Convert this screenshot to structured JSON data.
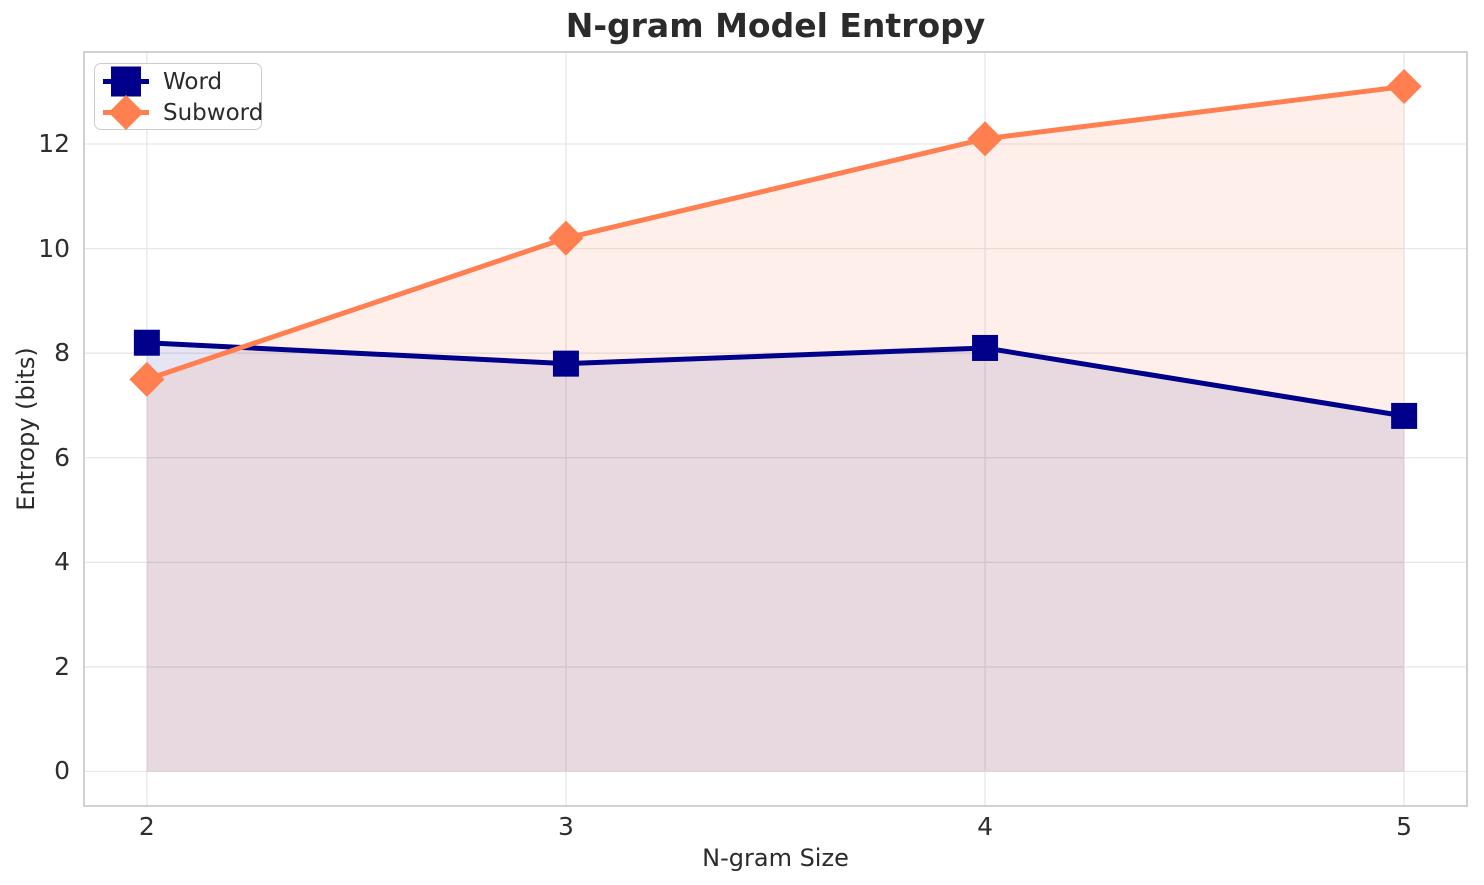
{
  "chart_data": {
    "type": "line",
    "title": "N-gram Model Entropy",
    "xlabel": "N-gram Size",
    "ylabel": "Entropy (bits)",
    "x": [
      2,
      3,
      4,
      5
    ],
    "x_tick_labels": [
      "2",
      "3",
      "4",
      "5"
    ],
    "y_tick_labels": [
      "0",
      "2",
      "4",
      "6",
      "8",
      "10",
      "12"
    ],
    "xlim": [
      1.85,
      5.15
    ],
    "ylim": [
      -0.66,
      13.76
    ],
    "grid": true,
    "legend_position": "upper left",
    "series": [
      {
        "name": "Word",
        "color": "#00008B",
        "marker": "square",
        "values": [
          8.2,
          7.8,
          8.1,
          6.8
        ],
        "fill_alpha": 0.1
      },
      {
        "name": "Subword",
        "color": "#FF7F50",
        "marker": "diamond",
        "values": [
          7.5,
          10.2,
          12.1,
          13.1
        ],
        "fill_alpha": 0.12
      }
    ],
    "style": {
      "background": "#ffffff",
      "grid_color": "#e7e7e7",
      "spine_color": "#cccccc",
      "text_color": "#2b2b2b",
      "line_width": 5,
      "square_size": 26,
      "diamond_size": 35
    }
  }
}
